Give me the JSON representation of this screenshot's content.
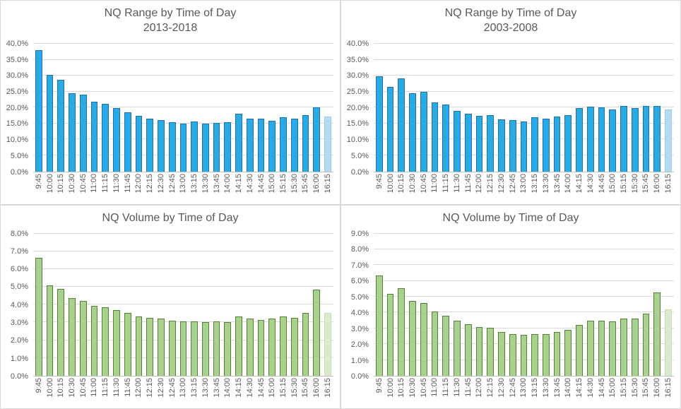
{
  "palette": {
    "background": "#FFFFFF",
    "panel_border": "#D9D9D9",
    "gridline": "#DBDBDB",
    "axis_line": "#BFBFBF",
    "text": "#595959",
    "blue_fill": "#29ABE2",
    "blue_border": "#1F6FB5",
    "light_blue_fill": "#B3DCF2",
    "light_blue_border": "#9CC9E4",
    "green_fill": "#A9D08E",
    "green_border": "#548235",
    "light_green_fill": "#D9EACD",
    "light_green_border": "#C7DDB8"
  },
  "chart_data": [
    {
      "id": "range-2013-2018",
      "type": "bar",
      "title": "NQ Range by Time of Day",
      "subtitle": "2013-2018",
      "xlabel": "",
      "ylabel": "",
      "grid": true,
      "legend": null,
      "ymax": 40,
      "ystep": 5,
      "ylim": [
        0,
        40
      ],
      "ytick_labels": [
        "0.0%",
        "5.0%",
        "10.0%",
        "15.0%",
        "20.0%",
        "25.0%",
        "30.0%",
        "35.0%",
        "40.0%"
      ],
      "categories": [
        "9:45",
        "10:00",
        "10:15",
        "10:30",
        "10:45",
        "11:00",
        "11:15",
        "11:30",
        "11:45",
        "12:00",
        "12:15",
        "12:30",
        "12:45",
        "13:00",
        "13:15",
        "13:30",
        "13:45",
        "14:00",
        "14:15",
        "14:30",
        "14:45",
        "15:00",
        "15:15",
        "15:30",
        "15:45",
        "16:00",
        "16:15"
      ],
      "values": [
        38.0,
        30.2,
        28.8,
        24.6,
        24.1,
        21.8,
        21.2,
        19.8,
        18.6,
        17.4,
        16.6,
        16.0,
        15.3,
        15.0,
        15.7,
        15.0,
        15.2,
        15.3,
        18.1,
        16.5,
        16.5,
        15.8,
        17.0,
        16.5,
        17.7,
        20.0,
        17.2
      ],
      "bar_fill": "#29ABE2",
      "bar_border": "#1F6FB5",
      "last_bar_fill": "#B3DCF2",
      "last_bar_border": "#9CC9E4"
    },
    {
      "id": "range-2003-2008",
      "type": "bar",
      "title": "NQ Range by Time of Day",
      "subtitle": "2003-2008",
      "xlabel": "",
      "ylabel": "",
      "grid": true,
      "legend": null,
      "ymax": 40,
      "ystep": 5,
      "ylim": [
        0,
        40
      ],
      "ytick_labels": [
        "0.0%",
        "5.0%",
        "10.0%",
        "15.0%",
        "20.0%",
        "25.0%",
        "30.0%",
        "35.0%",
        "40.0%"
      ],
      "categories": [
        "9:45",
        "10:00",
        "10:15",
        "10:30",
        "10:45",
        "11:00",
        "11:15",
        "11:30",
        "11:45",
        "12:00",
        "12:15",
        "12:30",
        "12:45",
        "13:00",
        "13:15",
        "13:30",
        "13:45",
        "14:00",
        "14:15",
        "14:30",
        "14:45",
        "15:00",
        "15:15",
        "15:30",
        "15:45",
        "16:00",
        "16:15"
      ],
      "values": [
        29.7,
        26.5,
        29.2,
        24.6,
        25.0,
        21.5,
        20.9,
        19.0,
        18.1,
        17.4,
        17.6,
        16.2,
        16.0,
        15.6,
        16.9,
        16.5,
        17.1,
        17.6,
        19.8,
        20.2,
        20.0,
        19.5,
        20.6,
        19.8,
        20.6,
        20.6,
        19.3
      ],
      "bar_fill": "#29ABE2",
      "bar_border": "#1F6FB5",
      "last_bar_fill": "#B3DCF2",
      "last_bar_border": "#9CC9E4"
    },
    {
      "id": "volume-2013-2018",
      "type": "bar",
      "title": "NQ Volume by Time of Day",
      "xlabel": "",
      "ylabel": "",
      "grid": true,
      "legend": null,
      "ymax": 8,
      "ystep": 1,
      "ylim": [
        0,
        8
      ],
      "ytick_labels": [
        "0.0%",
        "1.0%",
        "2.0%",
        "3.0%",
        "4.0%",
        "5.0%",
        "6.0%",
        "7.0%",
        "8.0%"
      ],
      "categories": [
        "9:45",
        "10:00",
        "10:15",
        "10:30",
        "10:45",
        "11:00",
        "11:15",
        "11:30",
        "11:45",
        "12:00",
        "12:15",
        "12:30",
        "12:45",
        "13:00",
        "13:15",
        "13:30",
        "13:45",
        "14:00",
        "14:15",
        "14:30",
        "14:45",
        "15:00",
        "15:15",
        "15:30",
        "15:45",
        "16:00",
        "16:15"
      ],
      "values": [
        6.65,
        5.1,
        4.9,
        4.35,
        4.2,
        3.95,
        3.85,
        3.7,
        3.55,
        3.35,
        3.25,
        3.2,
        3.1,
        3.05,
        3.05,
        3.0,
        3.05,
        3.0,
        3.35,
        3.2,
        3.15,
        3.2,
        3.35,
        3.25,
        3.55,
        4.85,
        3.55
      ],
      "bar_fill": "#A9D08E",
      "bar_border": "#548235",
      "last_bar_fill": "#D9EACD",
      "last_bar_border": "#C7DDB8"
    },
    {
      "id": "volume-2003-2008",
      "type": "bar",
      "title": "NQ Volume by Time of Day",
      "xlabel": "",
      "ylabel": "",
      "grid": true,
      "legend": null,
      "ymax": 9,
      "ystep": 1,
      "ylim": [
        0,
        9
      ],
      "ytick_labels": [
        "0.0%",
        "1.0%",
        "2.0%",
        "3.0%",
        "4.0%",
        "5.0%",
        "6.0%",
        "7.0%",
        "8.0%",
        "9.0%"
      ],
      "categories": [
        "9:45",
        "10:00",
        "10:15",
        "10:30",
        "10:45",
        "11:00",
        "11:15",
        "11:30",
        "11:45",
        "12:00",
        "12:15",
        "12:30",
        "12:45",
        "13:00",
        "13:15",
        "13:30",
        "13:45",
        "14:00",
        "14:15",
        "14:30",
        "14:45",
        "15:00",
        "15:15",
        "15:30",
        "15:45",
        "16:00",
        "16:15"
      ],
      "values": [
        6.35,
        5.2,
        5.55,
        4.75,
        4.6,
        4.05,
        3.8,
        3.5,
        3.25,
        3.1,
        3.05,
        2.75,
        2.65,
        2.6,
        2.65,
        2.65,
        2.75,
        2.9,
        3.2,
        3.5,
        3.5,
        3.45,
        3.6,
        3.6,
        3.95,
        5.25,
        4.2
      ],
      "bar_fill": "#A9D08E",
      "bar_border": "#548235",
      "last_bar_fill": "#D9EACD",
      "last_bar_border": "#C7DDB8"
    }
  ]
}
